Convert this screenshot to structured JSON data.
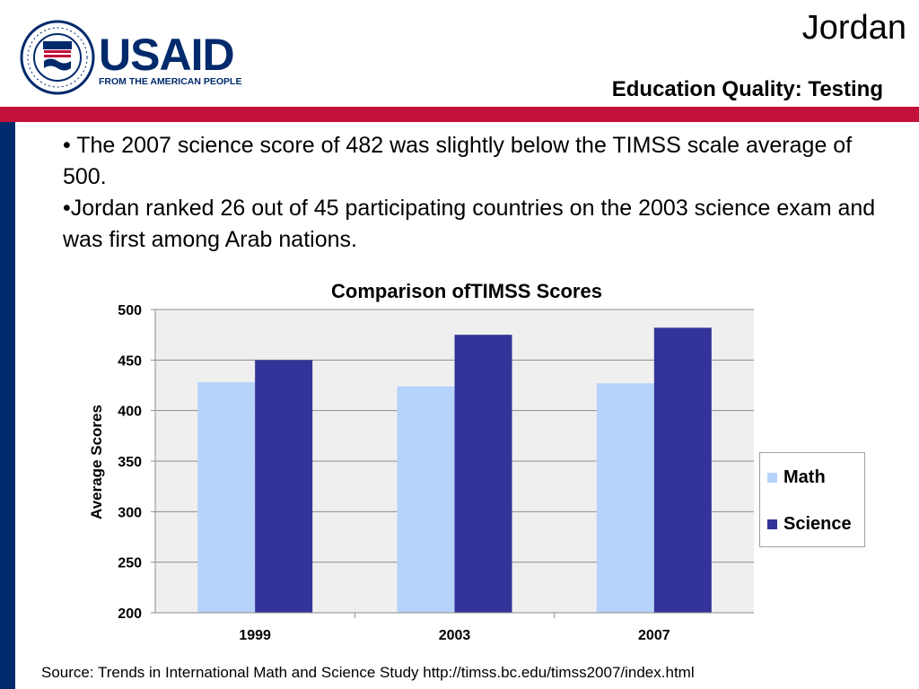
{
  "header": {
    "country": "Jordan",
    "subtitle": "Education Quality: Testing",
    "logo": {
      "wordmark": "USAID",
      "tagline": "FROM THE AMERICAN PEOPLE",
      "seal_text": "UNITED STATES AGENCY · INTERNATIONAL DEVELOPMENT"
    }
  },
  "bullets": [
    "• The 2007 science score of 482 was slightly below the TIMSS scale average of 500.",
    "•Jordan ranked 26 out of 45 participating countries on the 2003 science exam and was first among Arab nations."
  ],
  "colors": {
    "red_band": "#c2113a",
    "navy": "#002a6c",
    "math": "#b5d3fb",
    "science": "#333399",
    "plot_bg": "#efefef"
  },
  "chart_data": {
    "type": "bar",
    "title": "Comparison ofTIMSS Scores",
    "xlabel": "",
    "ylabel": "Average Scores",
    "categories": [
      "1999",
      "2003",
      "2007"
    ],
    "series": [
      {
        "name": "Math",
        "values": [
          428,
          424,
          427
        ]
      },
      {
        "name": "Science",
        "values": [
          450,
          475,
          482
        ]
      }
    ],
    "ylim": [
      200,
      500
    ],
    "yticks": [
      200,
      250,
      300,
      350,
      400,
      450,
      500
    ],
    "grid": true,
    "legend": "right"
  },
  "source": "Source: Trends in International Math and Science Study http://timss.bc.edu/timss2007/index.html"
}
